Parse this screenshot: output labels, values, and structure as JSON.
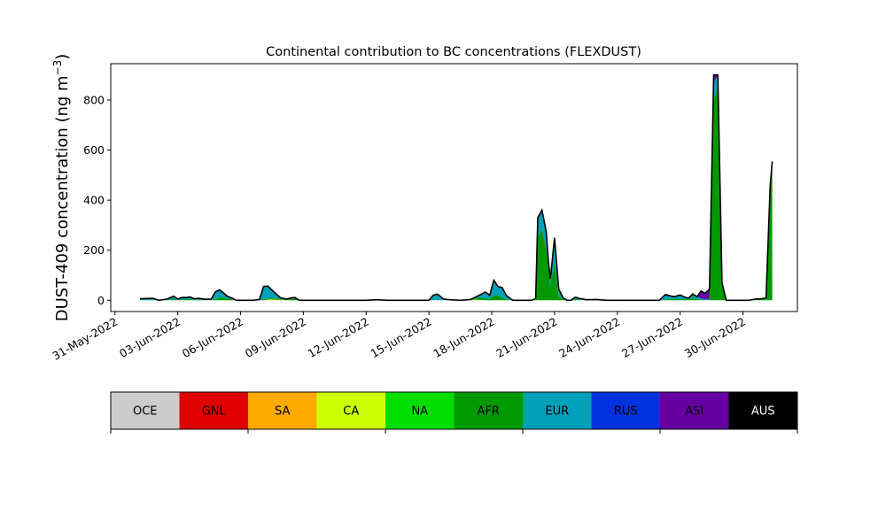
{
  "chart_data": {
    "type": "area",
    "title": "Continental contribution to BC concentrations (FLEXDUST)",
    "ylabel_main": "DUST-409 concentration (ng m",
    "ylabel_sup": "−3",
    "ylabel_end": ")",
    "xlabel": "",
    "x_tick_labels": [
      "31-May-2022",
      "03-Jun-2022",
      "06-Jun-2022",
      "09-Jun-2022",
      "12-Jun-2022",
      "15-Jun-2022",
      "18-Jun-2022",
      "21-Jun-2022",
      "24-Jun-2022",
      "27-Jun-2022",
      "30-Jun-2022"
    ],
    "x_tick_days": [
      0,
      3,
      6,
      9,
      12,
      15,
      18,
      21,
      24,
      27,
      30
    ],
    "xlim_days": [
      -0.2,
      32.6
    ],
    "y_ticks": [
      0,
      200,
      400,
      600,
      800
    ],
    "ylim": [
      -45,
      945
    ],
    "x_days": [
      1.2,
      1.5,
      1.8,
      2.1,
      2.5,
      2.8,
      3.0,
      3.2,
      3.4,
      3.6,
      3.8,
      4.0,
      4.3,
      4.6,
      4.8,
      5.0,
      5.2,
      5.4,
      5.6,
      5.8,
      6.0,
      6.3,
      6.6,
      6.9,
      7.1,
      7.3,
      7.6,
      7.9,
      8.2,
      8.4,
      8.6,
      8.8,
      9.0,
      9.2,
      9.4,
      9.6,
      9.8,
      10.0,
      10.5,
      11.0,
      11.5,
      12.0,
      12.5,
      13.0,
      13.5,
      14.0,
      14.5,
      14.8,
      15.0,
      15.2,
      15.4,
      15.7,
      16.0,
      16.5,
      17.0,
      17.4,
      17.7,
      17.9,
      18.1,
      18.3,
      18.5,
      18.7,
      19.0,
      19.3,
      19.6,
      19.9,
      20.1,
      20.2,
      20.4,
      20.6,
      20.7,
      20.8,
      21.0,
      21.2,
      21.4,
      21.6,
      21.8,
      21.9,
      22.0,
      22.2,
      22.5,
      23.0,
      23.5,
      24.0,
      24.5,
      25.0,
      25.5,
      26.0,
      26.3,
      26.5,
      26.7,
      26.8,
      27.0,
      27.2,
      27.4,
      27.6,
      27.8,
      28.0,
      28.2,
      28.4,
      28.6,
      28.8,
      29.0,
      29.2,
      29.4,
      29.7,
      30.0,
      30.3,
      30.6,
      30.9,
      31.1,
      31.3,
      31.4
    ],
    "series": [
      {
        "name": "CA",
        "color": "#ccff00",
        "values": [
          0,
          0,
          0,
          0,
          0,
          0,
          0,
          0,
          0,
          0,
          0,
          0,
          0,
          0,
          0,
          0,
          0,
          0,
          0,
          0,
          0,
          0,
          0,
          0,
          0,
          3,
          3,
          2,
          0,
          0,
          0,
          0,
          0,
          0,
          0,
          0,
          0,
          0,
          0,
          0,
          0,
          0,
          2,
          0,
          0,
          0,
          0,
          0,
          0,
          0,
          0,
          0,
          0,
          0,
          3,
          2,
          0,
          0,
          0,
          0,
          0,
          0,
          0,
          0,
          0,
          0,
          0,
          0,
          0,
          0,
          0,
          0,
          0,
          0,
          0,
          0,
          0,
          0,
          0,
          0,
          2,
          3,
          0,
          0,
          0,
          0,
          0,
          0,
          0,
          0,
          0,
          0,
          0,
          0,
          0,
          0,
          0,
          0,
          0,
          0,
          0,
          0,
          0,
          0,
          0,
          0,
          0,
          0,
          0,
          0,
          0,
          0,
          0
        ]
      },
      {
        "name": "AFR",
        "color": "#009900",
        "values": [
          0,
          0,
          0,
          0,
          0,
          6,
          0,
          4,
          3,
          6,
          0,
          4,
          2,
          0,
          4,
          12,
          10,
          6,
          4,
          0,
          0,
          0,
          0,
          0,
          5,
          4,
          5,
          3,
          2,
          6,
          8,
          0,
          0,
          0,
          0,
          0,
          0,
          0,
          0,
          0,
          0,
          0,
          0,
          0,
          0,
          0,
          0,
          0,
          0,
          0,
          0,
          0,
          0,
          0,
          0,
          8,
          8,
          5,
          20,
          20,
          10,
          4,
          0,
          0,
          0,
          0,
          4,
          250,
          285,
          200,
          130,
          60,
          150,
          15,
          5,
          0,
          0,
          3,
          5,
          2,
          0,
          0,
          0,
          0,
          0,
          0,
          0,
          0,
          3,
          6,
          4,
          6,
          6,
          5,
          3,
          10,
          4,
          2,
          0,
          0,
          800,
          850,
          60,
          0,
          0,
          0,
          0,
          0,
          5,
          6,
          10,
          450,
          545
        ]
      },
      {
        "name": "EUR",
        "color": "#00a0b8",
        "values": [
          6,
          7,
          8,
          0,
          5,
          10,
          5,
          7,
          8,
          7,
          6,
          4,
          2,
          5,
          30,
          30,
          18,
          8,
          5,
          0,
          0,
          0,
          0,
          3,
          50,
          50,
          25,
          5,
          3,
          3,
          3,
          0,
          0,
          0,
          0,
          0,
          0,
          0,
          0,
          0,
          0,
          0,
          0,
          0,
          0,
          0,
          0,
          0,
          0,
          20,
          25,
          5,
          2,
          0,
          0,
          10,
          25,
          15,
          60,
          35,
          40,
          15,
          0,
          0,
          0,
          0,
          3,
          80,
          75,
          75,
          30,
          25,
          100,
          30,
          5,
          0,
          0,
          5,
          7,
          5,
          0,
          0,
          0,
          0,
          0,
          0,
          0,
          0,
          20,
          12,
          10,
          10,
          15,
          8,
          5,
          15,
          10,
          5,
          3,
          5,
          70,
          50,
          10,
          0,
          0,
          0,
          0,
          0,
          0,
          0,
          0,
          8,
          10
        ]
      },
      {
        "name": "ASI",
        "color": "#6600a0",
        "values": [
          0,
          0,
          0,
          0,
          0,
          0,
          0,
          0,
          0,
          0,
          0,
          0,
          0,
          0,
          0,
          0,
          0,
          0,
          0,
          0,
          0,
          0,
          0,
          0,
          0,
          0,
          0,
          0,
          0,
          0,
          0,
          0,
          0,
          0,
          0,
          0,
          0,
          0,
          0,
          0,
          0,
          0,
          0,
          0,
          0,
          0,
          0,
          0,
          0,
          0,
          0,
          0,
          0,
          0,
          0,
          0,
          0,
          0,
          0,
          0,
          0,
          0,
          0,
          0,
          0,
          0,
          0,
          0,
          0,
          0,
          0,
          0,
          0,
          0,
          0,
          0,
          0,
          0,
          0,
          0,
          0,
          0,
          0,
          0,
          0,
          0,
          0,
          0,
          0,
          0,
          0,
          0,
          0,
          0,
          0,
          0,
          0,
          30,
          25,
          40,
          30,
          0,
          0,
          0,
          0,
          0,
          0,
          0,
          0,
          0,
          0,
          0,
          0
        ]
      }
    ],
    "legend": {
      "placement": "bottom",
      "entries": [
        {
          "label": "OCE",
          "color": "#cccccc",
          "text_color": "#000000"
        },
        {
          "label": "GNL",
          "color": "#e00000",
          "text_color": "#000000"
        },
        {
          "label": "SA",
          "color": "#ffaa00",
          "text_color": "#000000"
        },
        {
          "label": "CA",
          "color": "#ccff00",
          "text_color": "#000000"
        },
        {
          "label": "NA",
          "color": "#00dd00",
          "text_color": "#000000"
        },
        {
          "label": "AFR",
          "color": "#009900",
          "text_color": "#000000"
        },
        {
          "label": "EUR",
          "color": "#00a0b8",
          "text_color": "#000000"
        },
        {
          "label": "RUS",
          "color": "#0033dd",
          "text_color": "#000000"
        },
        {
          "label": "ASI",
          "color": "#6600a0",
          "text_color": "#000000"
        },
        {
          "label": "AUS",
          "color": "#000000",
          "text_color": "#ffffff"
        }
      ]
    },
    "total_line_color": "#000000",
    "grid": false
  }
}
